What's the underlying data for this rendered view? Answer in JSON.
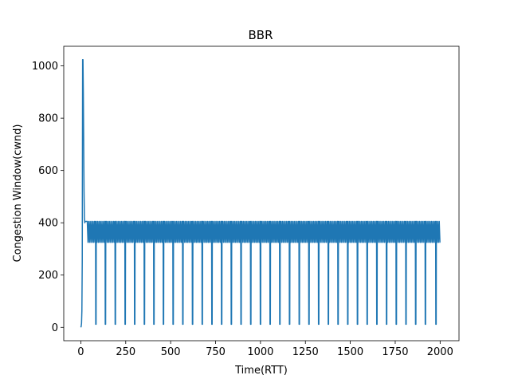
{
  "chart_data": {
    "type": "line",
    "title": "BBR",
    "xlabel": "Time(RTT)",
    "ylabel": "Congestion Window(cwnd)",
    "xlim": [
      -95,
      2105
    ],
    "ylim": [
      -51,
      1075
    ],
    "xticks": [
      0,
      250,
      500,
      750,
      1000,
      1250,
      1500,
      1750,
      2000
    ],
    "yticks": [
      0,
      200,
      400,
      600,
      800,
      1000
    ],
    "grid": false,
    "legend": "none",
    "series": [
      {
        "color": "#1f77b4",
        "startup": {
          "x": [
            0,
            2,
            4,
            6,
            8,
            10,
            12,
            14,
            16,
            18,
            20,
            22,
            24,
            30,
            36
          ],
          "y": [
            0,
            4,
            16,
            64,
            256,
            1024,
            1024,
            900,
            700,
            520,
            420,
            400,
            405,
            405,
            405
          ]
        },
        "steady_state": {
          "high": 405,
          "low": 325,
          "floor": 12,
          "start": 36,
          "end": 2000,
          "cycle_period": 8,
          "probe_rtt_times": [
            82,
            135,
            190,
            245,
            298,
            352,
            405,
            458,
            512,
            566,
            620,
            674,
            728,
            782,
            836,
            890,
            944,
            998,
            1052,
            1106,
            1160,
            1214,
            1268,
            1322,
            1376,
            1430,
            1484,
            1538,
            1592,
            1646,
            1700,
            1754,
            1808,
            1862,
            1916,
            1975
          ]
        }
      }
    ]
  }
}
